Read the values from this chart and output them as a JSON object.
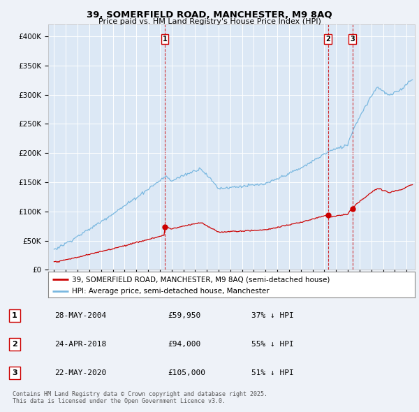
{
  "title": "39, SOMERFIELD ROAD, MANCHESTER, M9 8AQ",
  "subtitle": "Price paid vs. HM Land Registry's House Price Index (HPI)",
  "hpi_color": "#7ab8e0",
  "price_color": "#cc0000",
  "vline_color": "#cc0000",
  "dot_color": "#cc0000",
  "background_color": "#eef2f8",
  "plot_bg": "#dce8f5",
  "ylim": [
    0,
    420000
  ],
  "yticks": [
    0,
    50000,
    100000,
    150000,
    200000,
    250000,
    300000,
    350000,
    400000
  ],
  "transactions": [
    {
      "date_num": 2004.42,
      "price": 59950,
      "label": "1"
    },
    {
      "date_num": 2018.32,
      "price": 94000,
      "label": "2"
    },
    {
      "date_num": 2020.39,
      "price": 105000,
      "label": "3"
    }
  ],
  "legend_entries": [
    {
      "label": "39, SOMERFIELD ROAD, MANCHESTER, M9 8AQ (semi-detached house)",
      "color": "#cc0000"
    },
    {
      "label": "HPI: Average price, semi-detached house, Manchester",
      "color": "#7ab8e0"
    }
  ],
  "table_entries": [
    {
      "num": "1",
      "date": "28-MAY-2004",
      "price": "£59,950",
      "note": "37% ↓ HPI"
    },
    {
      "num": "2",
      "date": "24-APR-2018",
      "price": "£94,000",
      "note": "55% ↓ HPI"
    },
    {
      "num": "3",
      "date": "22-MAY-2020",
      "price": "£105,000",
      "note": "51% ↓ HPI"
    }
  ],
  "footnote": "Contains HM Land Registry data © Crown copyright and database right 2025.\nThis data is licensed under the Open Government Licence v3.0.",
  "xmin": 1994.5,
  "xmax": 2025.7
}
